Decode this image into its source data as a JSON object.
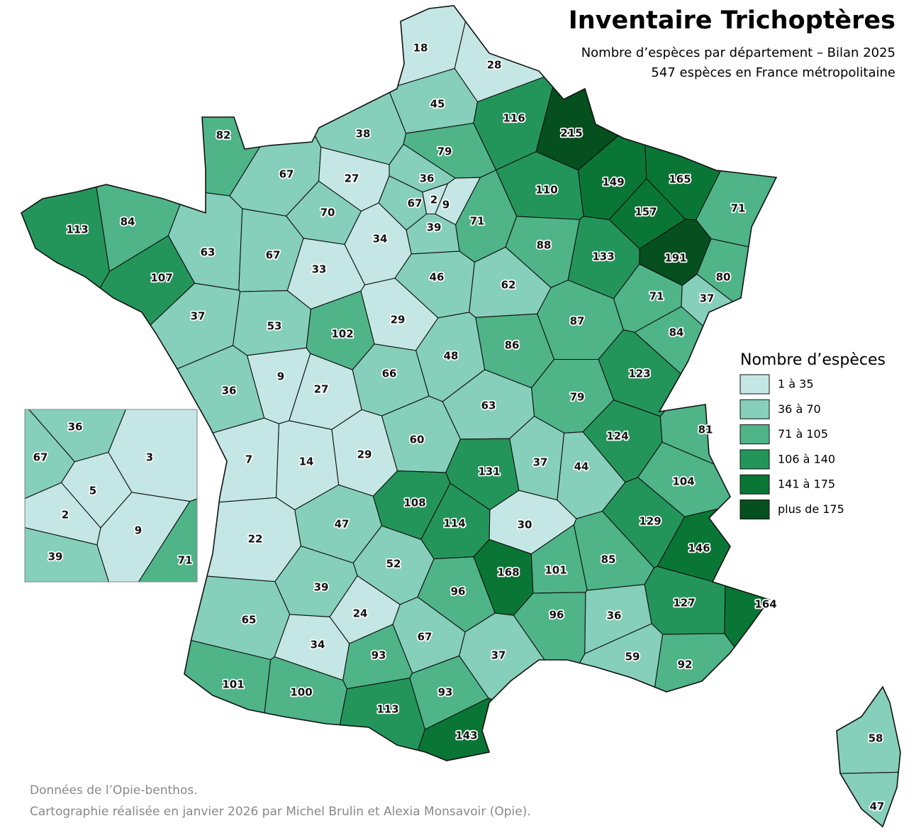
{
  "header": {
    "title": "Inventaire Trichoptères",
    "subtitle": [
      "Nombre d’espèces par département – Bilan 2025",
      "547 espèces en France métropolitaine"
    ]
  },
  "departments": [
    18,
    28,
    45,
    116,
    215,
    82,
    38,
    79,
    149,
    165,
    67,
    27,
    36,
    110,
    71,
    113,
    84,
    70,
    67,
    2,
    9,
    157,
    71,
    39,
    34,
    63,
    67,
    33,
    88,
    133,
    191,
    107,
    46,
    62,
    80,
    37,
    53,
    102,
    29,
    71,
    37,
    87,
    84,
    86,
    48,
    66,
    9,
    27,
    36,
    123,
    79,
    63,
    81,
    124,
    60,
    29,
    7,
    14,
    37,
    44,
    131,
    104,
    108,
    114,
    30,
    129,
    47,
    22,
    146,
    168,
    101,
    85,
    52,
    39,
    96,
    127,
    164,
    24,
    96,
    36,
    65,
    67,
    34,
    93,
    37,
    59,
    92,
    101,
    100,
    93,
    113,
    143,
    58,
    47
  ],
  "paris_inset": [
    36,
    67,
    3,
    5,
    2,
    9,
    39,
    71
  ],
  "legend": {
    "title": "Nombre d’espèces",
    "classes": [
      {
        "label": "1 à 35",
        "max": 35,
        "color": "#c4e7e5"
      },
      {
        "label": "36 à 70",
        "max": 70,
        "color": "#86cfba"
      },
      {
        "label": "71 à 105",
        "max": 105,
        "color": "#4fb487"
      },
      {
        "label": "106 à 140",
        "max": 140,
        "color": "#24955a"
      },
      {
        "label": "141 à 175",
        "max": 175,
        "color": "#0a7635"
      },
      {
        "label": "plus de 175",
        "color": "#06501f"
      }
    ]
  },
  "footer": [
    "Données de l’Opie-benthos.",
    "Cartographie réalisée en janvier 2026 par Michel Brulin et Alexia Monsavoir (Opie)."
  ]
}
